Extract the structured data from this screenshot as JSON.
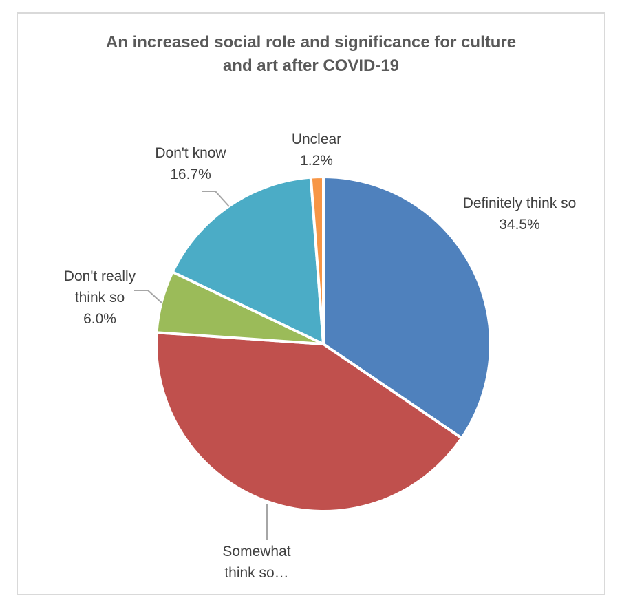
{
  "chart_data": {
    "type": "pie",
    "title_lines": [
      "An increased social role and significance for culture",
      "and art after COVID-19"
    ],
    "slices": [
      {
        "label_lines": [
          "Definitely think so"
        ],
        "value": 34.5,
        "value_text": "34.5%",
        "color": "#4f81bd"
      },
      {
        "label_lines": [
          "Somewhat",
          "think so…"
        ],
        "value": 41.6,
        "value_text": "",
        "color": "#c0504d"
      },
      {
        "label_lines": [
          "Don't really",
          "think so"
        ],
        "value": 6.0,
        "value_text": "6.0%",
        "color": "#9bbb59"
      },
      {
        "label_lines": [
          "Don't know"
        ],
        "value": 16.7,
        "value_text": "16.7%",
        "color": "#4bacc6"
      },
      {
        "label_lines": [
          "Unclear"
        ],
        "value": 1.2,
        "value_text": "1.2%",
        "color": "#f79646"
      }
    ]
  }
}
